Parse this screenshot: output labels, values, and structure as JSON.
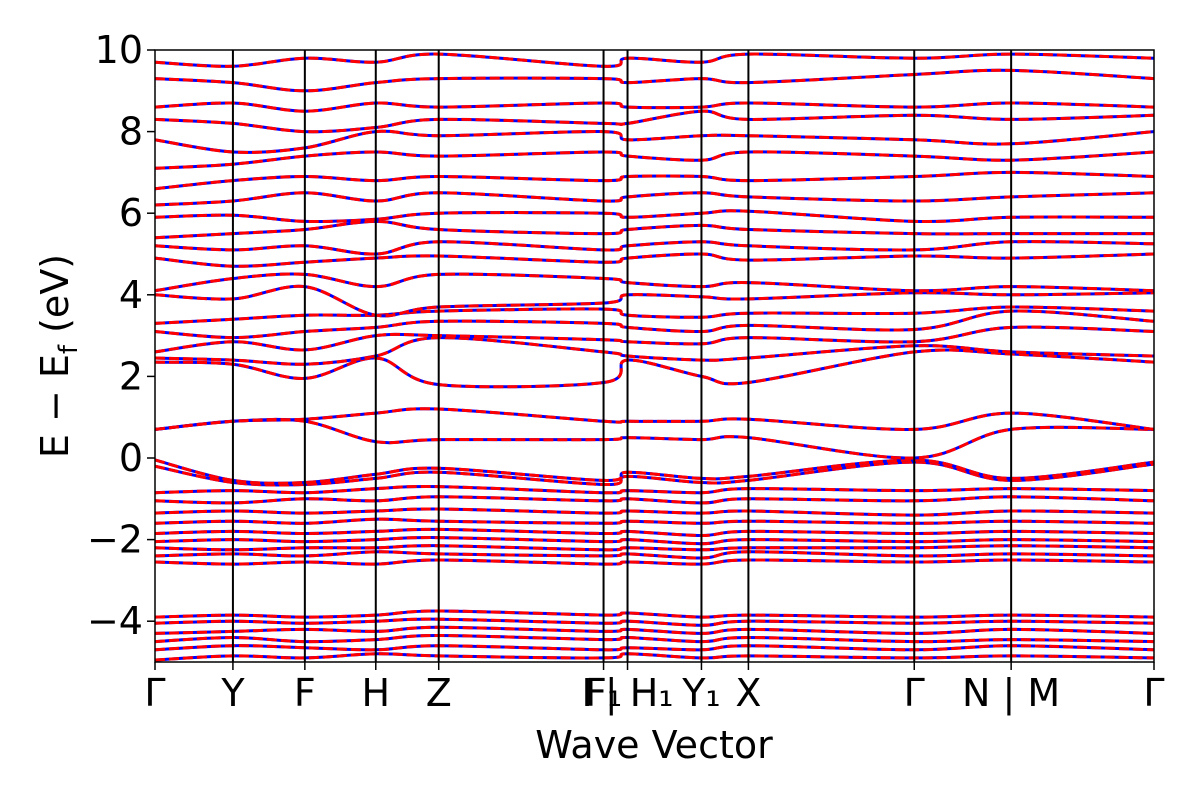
{
  "chart_data": {
    "type": "line",
    "title": "",
    "xlabel": "Wave Vector",
    "ylabel": "E − E_f (eV)",
    "ylabel_parts": {
      "main": "E − E",
      "sub": "f",
      "unit": " (eV)"
    },
    "ylim": [
      -5,
      10
    ],
    "yticks": [
      -4,
      -2,
      0,
      2,
      4,
      6,
      8,
      10
    ],
    "yticklabels": [
      "−4",
      "−2",
      "0",
      "2",
      "4",
      "6",
      "8",
      "10"
    ],
    "xlim": [
      0,
      1
    ],
    "kpoints": [
      {
        "pos": 0.0,
        "label": "Γ",
        "line": false
      },
      {
        "pos": 0.078,
        "label": "Y",
        "line": true
      },
      {
        "pos": 0.15,
        "label": "F",
        "line": true
      },
      {
        "pos": 0.221,
        "label": "H",
        "line": true
      },
      {
        "pos": 0.284,
        "label": "Z",
        "line": true
      },
      {
        "pos": 0.449,
        "label": "F₁",
        "line": true
      },
      {
        "pos": 0.473,
        "label": "I | H₁",
        "line": true
      },
      {
        "pos": 0.547,
        "label": "Y₁",
        "line": true
      },
      {
        "pos": 0.594,
        "label": "X",
        "line": true
      },
      {
        "pos": 0.76,
        "label": "Γ",
        "line": true
      },
      {
        "pos": 0.857,
        "label": "N | M",
        "line": true
      },
      {
        "pos": 1.0,
        "label": "Γ",
        "line": false
      }
    ],
    "grid": false,
    "legend": "none",
    "series_styles": [
      {
        "color": "#0000ff",
        "style": "solid"
      },
      {
        "color": "#ff0000",
        "style": "dashed"
      }
    ],
    "bands": [
      {
        "y": [
          -4.95,
          -4.85,
          -4.9,
          -4.8,
          -4.85,
          -4.9,
          -4.8,
          -4.9,
          -4.85,
          -4.9,
          -4.85,
          -4.9
        ]
      },
      {
        "y": [
          -4.7,
          -4.6,
          -4.65,
          -4.7,
          -4.6,
          -4.7,
          -4.65,
          -4.7,
          -4.6,
          -4.7,
          -4.6,
          -4.7
        ]
      },
      {
        "y": [
          -4.5,
          -4.4,
          -4.5,
          -4.45,
          -4.35,
          -4.45,
          -4.4,
          -4.5,
          -4.4,
          -4.5,
          -4.45,
          -4.5
        ]
      },
      {
        "y": [
          -4.3,
          -4.25,
          -4.2,
          -4.25,
          -4.15,
          -4.25,
          -4.2,
          -4.3,
          -4.2,
          -4.3,
          -4.2,
          -4.3
        ]
      },
      {
        "y": [
          -4.05,
          -4.0,
          -4.05,
          -4.0,
          -3.95,
          -4.05,
          -4.0,
          -4.1,
          -4.0,
          -4.05,
          -4.0,
          -4.05
        ]
      },
      {
        "y": [
          -3.9,
          -3.85,
          -3.9,
          -3.85,
          -3.75,
          -3.85,
          -3.8,
          -3.9,
          -3.85,
          -3.9,
          -3.85,
          -3.9
        ]
      },
      {
        "y": [
          -2.55,
          -2.6,
          -2.55,
          -2.6,
          -2.5,
          -2.6,
          -2.55,
          -2.6,
          -2.5,
          -2.55,
          -2.5,
          -2.55
        ]
      },
      {
        "y": [
          -2.4,
          -2.35,
          -2.4,
          -2.3,
          -2.35,
          -2.4,
          -2.35,
          -2.45,
          -2.3,
          -2.4,
          -2.35,
          -2.4
        ]
      },
      {
        "y": [
          -2.2,
          -2.25,
          -2.2,
          -2.2,
          -2.15,
          -2.25,
          -2.2,
          -2.25,
          -2.2,
          -2.2,
          -2.15,
          -2.2
        ]
      },
      {
        "y": [
          -2.05,
          -2.0,
          -2.05,
          -2.0,
          -1.95,
          -2.05,
          -2.0,
          -2.1,
          -2.0,
          -2.05,
          -2.0,
          -2.05
        ]
      },
      {
        "y": [
          -1.85,
          -1.8,
          -1.85,
          -1.8,
          -1.75,
          -1.85,
          -1.8,
          -1.9,
          -1.8,
          -1.85,
          -1.8,
          -1.85
        ]
      },
      {
        "y": [
          -1.6,
          -1.55,
          -1.6,
          -1.5,
          -1.55,
          -1.6,
          -1.55,
          -1.6,
          -1.55,
          -1.6,
          -1.55,
          -1.6
        ]
      },
      {
        "y": [
          -1.35,
          -1.3,
          -1.35,
          -1.3,
          -1.25,
          -1.35,
          -1.3,
          -1.35,
          -1.3,
          -1.4,
          -1.3,
          -1.35
        ]
      },
      {
        "y": [
          -1.05,
          -1.1,
          -1.0,
          -1.05,
          -0.95,
          -1.05,
          -1.0,
          -1.1,
          -1.0,
          -1.05,
          -0.95,
          -1.05
        ]
      },
      {
        "y": [
          -0.85,
          -0.8,
          -0.85,
          -0.75,
          -0.7,
          -0.85,
          -0.8,
          -0.85,
          -0.75,
          -0.8,
          -0.75,
          -0.8
        ]
      },
      {
        "y": [
          -0.2,
          -0.6,
          -0.65,
          -0.5,
          -0.35,
          -0.65,
          -0.45,
          -0.6,
          -0.55,
          -0.1,
          -0.55,
          -0.15
        ]
      },
      {
        "y": [
          -0.05,
          -0.55,
          -0.6,
          -0.4,
          -0.25,
          -0.55,
          -0.35,
          -0.5,
          -0.45,
          -0.05,
          -0.5,
          -0.1
        ]
      },
      {
        "y": [
          0.7,
          0.9,
          0.9,
          0.4,
          0.45,
          0.45,
          0.5,
          0.45,
          0.5,
          0.0,
          0.7,
          0.7
        ]
      },
      {
        "y": [
          0.7,
          0.9,
          0.95,
          1.1,
          1.2,
          0.9,
          0.9,
          0.9,
          0.95,
          0.7,
          1.1,
          0.7
        ]
      },
      {
        "y": [
          2.35,
          2.3,
          1.95,
          2.45,
          1.8,
          1.85,
          2.4,
          2.0,
          1.85,
          2.6,
          2.55,
          2.35
        ]
      },
      {
        "y": [
          2.45,
          2.4,
          2.3,
          2.5,
          2.95,
          2.6,
          2.5,
          2.4,
          2.45,
          2.75,
          2.6,
          2.5
        ]
      },
      {
        "y": [
          2.6,
          2.85,
          2.65,
          3.0,
          3.0,
          2.9,
          2.85,
          2.8,
          2.95,
          2.85,
          3.2,
          3.1
        ]
      },
      {
        "y": [
          3.1,
          2.95,
          3.1,
          3.2,
          3.35,
          3.3,
          3.2,
          3.1,
          3.25,
          3.15,
          3.6,
          3.35
        ]
      },
      {
        "y": [
          3.3,
          3.4,
          3.5,
          3.5,
          3.6,
          3.65,
          3.5,
          3.45,
          3.55,
          3.55,
          3.7,
          3.6
        ]
      },
      {
        "y": [
          4.0,
          3.9,
          4.2,
          3.5,
          3.7,
          3.8,
          4.0,
          3.95,
          3.9,
          4.05,
          4.0,
          4.05
        ]
      },
      {
        "y": [
          4.1,
          4.4,
          4.5,
          4.2,
          4.5,
          4.4,
          4.3,
          4.2,
          4.3,
          4.1,
          4.2,
          4.1
        ]
      },
      {
        "y": [
          4.9,
          4.7,
          4.8,
          4.9,
          4.95,
          4.8,
          4.9,
          5.0,
          4.85,
          4.95,
          4.9,
          5.0
        ]
      },
      {
        "y": [
          5.2,
          5.1,
          5.2,
          5.0,
          5.3,
          5.1,
          5.2,
          5.3,
          5.2,
          5.1,
          5.3,
          5.25
        ]
      },
      {
        "y": [
          5.4,
          5.5,
          5.6,
          5.8,
          5.6,
          5.5,
          5.6,
          5.7,
          5.6,
          5.5,
          5.5,
          5.5
        ]
      },
      {
        "y": [
          5.9,
          5.95,
          5.8,
          5.85,
          6.0,
          6.0,
          5.9,
          6.0,
          6.05,
          5.8,
          5.9,
          5.9
        ]
      },
      {
        "y": [
          6.2,
          6.3,
          6.5,
          6.3,
          6.5,
          6.3,
          6.4,
          6.5,
          6.4,
          6.3,
          6.4,
          6.5
        ]
      },
      {
        "y": [
          6.6,
          6.8,
          6.9,
          6.8,
          6.9,
          6.8,
          6.9,
          6.9,
          6.8,
          6.9,
          7.0,
          6.9
        ]
      },
      {
        "y": [
          7.1,
          7.2,
          7.4,
          7.5,
          7.4,
          7.5,
          7.4,
          7.3,
          7.5,
          7.4,
          7.3,
          7.5
        ]
      },
      {
        "y": [
          7.8,
          7.5,
          7.6,
          8.0,
          7.9,
          8.0,
          7.8,
          7.9,
          7.9,
          7.8,
          7.7,
          8.0
        ]
      },
      {
        "y": [
          8.3,
          8.2,
          8.0,
          8.1,
          8.3,
          8.2,
          8.2,
          8.5,
          8.3,
          8.4,
          8.3,
          8.4
        ]
      },
      {
        "y": [
          8.6,
          8.7,
          8.5,
          8.7,
          8.6,
          8.7,
          8.6,
          8.6,
          8.7,
          8.6,
          8.7,
          8.6
        ]
      },
      {
        "y": [
          9.3,
          9.2,
          9.0,
          9.2,
          9.3,
          9.3,
          9.2,
          9.3,
          9.2,
          9.4,
          9.5,
          9.3
        ]
      },
      {
        "y": [
          9.7,
          9.6,
          9.8,
          9.7,
          9.9,
          9.6,
          9.8,
          9.7,
          9.9,
          9.8,
          9.9,
          9.8
        ]
      }
    ]
  }
}
